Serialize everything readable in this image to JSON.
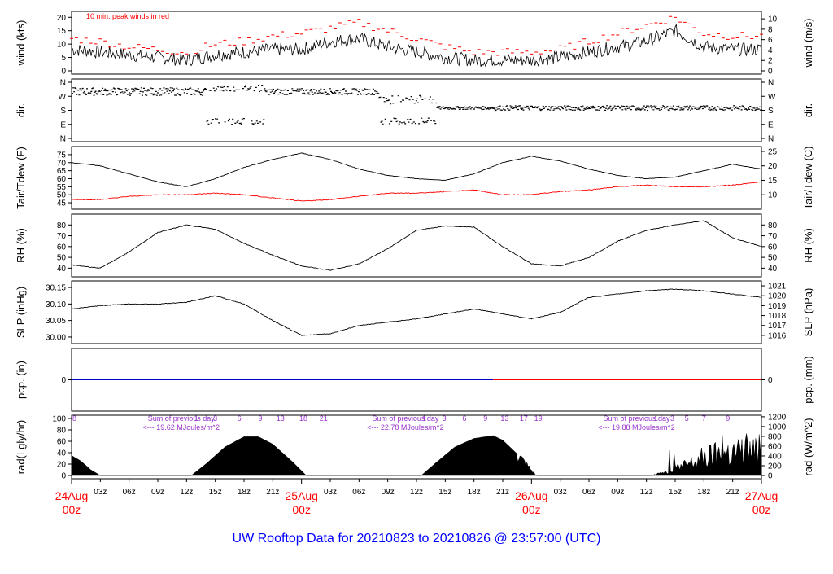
{
  "title": "UW Rooftop Data for 20210823  to  20210826 @ 23:57:00  (UTC)",
  "colors": {
    "black": "#000000",
    "red": "#ff0000",
    "blue": "#0000cc",
    "magenta": "#9933cc",
    "title": "#0000ff"
  },
  "chart_data": [
    {
      "type": "line",
      "panel": "wind",
      "ylabel_left": "wind (kts)",
      "ylabel_right": "wind (m/s)",
      "annotation": "10 min. peak winds in red",
      "ylim": [
        0,
        21
      ],
      "yticks_left": [
        "0",
        "5",
        "10",
        "15",
        "20"
      ],
      "yticks_right": [
        "0",
        "2",
        "4",
        "6",
        "8",
        "10"
      ],
      "series": [
        {
          "color": "black",
          "x": [
            0,
            3,
            6,
            9,
            12,
            15,
            18,
            21,
            24,
            27,
            30,
            33,
            36,
            39,
            42,
            45,
            48,
            51,
            54,
            57,
            60,
            63,
            66,
            69,
            72
          ],
          "values": [
            8,
            7,
            6,
            5,
            4,
            6,
            7,
            8,
            8,
            11,
            12,
            9,
            7,
            5,
            4,
            4,
            4,
            5,
            7,
            9,
            11,
            15,
            9,
            8,
            8
          ]
        },
        {
          "color": "red",
          "x": [
            0,
            3,
            6,
            9,
            12,
            15,
            18,
            21,
            24,
            27,
            30,
            33,
            36,
            39,
            42,
            45,
            48,
            51,
            54,
            57,
            60,
            63,
            66,
            69,
            72
          ],
          "values": [
            12,
            11,
            9,
            8,
            7,
            10,
            11,
            13,
            14,
            16,
            18,
            15,
            12,
            9,
            7,
            7,
            7,
            8,
            11,
            14,
            17,
            20,
            14,
            13,
            13
          ]
        }
      ]
    },
    {
      "type": "scatter",
      "panel": "dir",
      "ylabel_left": "dir.",
      "ylabel_right": "dir.",
      "yticks_left": [
        "N",
        "W",
        "S",
        "E",
        "N"
      ],
      "yticks_right": [
        "N",
        "W",
        "S",
        "E",
        "N"
      ]
    },
    {
      "type": "line",
      "panel": "temperature",
      "ylabel_left": "Tair/Tdew (F)",
      "ylabel_right": "Tair/Tdew (C)",
      "ylim": [
        43,
        78
      ],
      "yticks_left": [
        "45",
        "50",
        "55",
        "60",
        "65",
        "70",
        "75"
      ],
      "yticks_right": [
        "10",
        "15",
        "20",
        "25"
      ],
      "series": [
        {
          "color": "black",
          "x": [
            0,
            3,
            6,
            9,
            12,
            15,
            18,
            21,
            24,
            27,
            30,
            33,
            36,
            39,
            42,
            45,
            48,
            51,
            54,
            57,
            60,
            63,
            66,
            69,
            72
          ],
          "values": [
            70,
            68,
            63,
            58,
            55,
            60,
            67,
            72,
            76,
            72,
            66,
            62,
            60,
            59,
            63,
            70,
            74,
            71,
            66,
            62,
            60,
            61,
            65,
            69,
            66
          ]
        },
        {
          "color": "red",
          "x": [
            0,
            3,
            6,
            9,
            12,
            15,
            18,
            21,
            24,
            27,
            30,
            33,
            36,
            39,
            42,
            45,
            48,
            51,
            54,
            57,
            60,
            63,
            66,
            69,
            72
          ],
          "values": [
            47,
            47,
            49,
            50,
            50,
            51,
            50,
            48,
            46,
            47,
            49,
            51,
            51,
            52,
            53,
            50,
            50,
            52,
            53,
            55,
            56,
            55,
            55,
            56,
            58
          ]
        }
      ]
    },
    {
      "type": "line",
      "panel": "rh",
      "ylabel_left": "RH (%)",
      "ylabel_right": "RH (%)",
      "ylim": [
        35,
        87
      ],
      "yticks_left": [
        "40",
        "50",
        "60",
        "70",
        "80"
      ],
      "yticks_right": [
        "40",
        "50",
        "60",
        "70",
        "80"
      ],
      "series": [
        {
          "color": "black",
          "x": [
            0,
            3,
            6,
            9,
            12,
            15,
            18,
            21,
            24,
            27,
            30,
            33,
            36,
            39,
            42,
            45,
            48,
            51,
            54,
            57,
            60,
            63,
            66,
            69,
            72
          ],
          "values": [
            43,
            40,
            55,
            73,
            80,
            76,
            63,
            52,
            42,
            38,
            44,
            58,
            75,
            79,
            78,
            60,
            44,
            42,
            50,
            65,
            75,
            80,
            84,
            68,
            60
          ]
        }
      ]
    },
    {
      "type": "line",
      "panel": "slp",
      "ylabel_left": "SLP (inHg)",
      "ylabel_right": "SLP (hPa)",
      "ylim": [
        29.99,
        30.16
      ],
      "yticks_left": [
        "30.00",
        "30.05",
        "30.10",
        "30.15"
      ],
      "yticks_right": [
        "1016",
        "1017",
        "1018",
        "1019",
        "1020",
        "1021"
      ],
      "series": [
        {
          "color": "black",
          "x": [
            0,
            3,
            6,
            9,
            12,
            15,
            18,
            21,
            24,
            27,
            30,
            33,
            36,
            39,
            42,
            45,
            48,
            51,
            54,
            57,
            60,
            63,
            66,
            69,
            72
          ],
          "values": [
            30.085,
            30.095,
            30.1,
            30.1,
            30.105,
            30.125,
            30.1,
            30.05,
            30.005,
            30.01,
            30.035,
            30.045,
            30.055,
            30.07,
            30.085,
            30.07,
            30.055,
            30.075,
            30.12,
            30.13,
            30.14,
            30.145,
            30.14,
            30.13,
            30.12
          ]
        }
      ]
    },
    {
      "type": "line",
      "panel": "pcp",
      "ylabel_left": "pcp. (in)",
      "ylabel_right": "pcp. (mm)",
      "yticks_left": [
        "0"
      ],
      "yticks_right": [
        "0"
      ],
      "series": [
        {
          "color": "blue",
          "x": [
            0,
            44
          ],
          "values": [
            0,
            0
          ]
        },
        {
          "color": "red",
          "x": [
            44,
            72
          ],
          "values": [
            0,
            0
          ]
        }
      ]
    },
    {
      "type": "area",
      "panel": "radiation",
      "ylabel_left": "rad(Lgly/hr)",
      "ylabel_right": "rad (W/m^2)",
      "ylim": [
        0,
        100
      ],
      "yticks_left": [
        "0",
        "20",
        "40",
        "60",
        "80",
        "100"
      ],
      "yticks_right": [
        "0",
        "200",
        "400",
        "600",
        "800",
        "1000",
        "1200"
      ],
      "daily_sums": [
        {
          "label": "Sum of previous day",
          "value": "<--- 19.62 MJoules/m^2"
        },
        {
          "label": "Sum of previous day",
          "value": "<--- 22.78 MJoules/m^2"
        },
        {
          "label": "Sum of previous day",
          "value": "<--- 19.88 MJoules/m^2"
        }
      ],
      "hour_marks": [
        "8",
        "1",
        "3",
        "6",
        "9",
        "13",
        "18",
        "21",
        "1",
        "3",
        "6",
        "9",
        "13",
        "17",
        "19",
        "1",
        "3",
        "5",
        "7",
        "9"
      ],
      "series": [
        {
          "color": "black",
          "x": [
            0,
            1,
            2,
            3,
            12.5,
            14,
            16,
            18,
            19.5,
            21,
            23,
            24.5,
            36.5,
            38,
            40,
            42,
            44,
            45,
            47,
            48.5,
            60.5,
            62,
            64,
            66,
            68,
            70,
            72
          ],
          "values": [
            35,
            25,
            10,
            0,
            0,
            20,
            50,
            68,
            68,
            55,
            25,
            0,
            0,
            22,
            50,
            65,
            70,
            62,
            30,
            0,
            0,
            8,
            25,
            45,
            55,
            60,
            55
          ]
        }
      ]
    }
  ],
  "x_axis": {
    "ticks": [
      "03z",
      "06z",
      "09z",
      "12z",
      "15z",
      "18z",
      "21z",
      "03z",
      "06z",
      "09z",
      "12z",
      "15z",
      "18z",
      "21z",
      "03z",
      "06z",
      "09z",
      "12z",
      "15z",
      "18z",
      "21z"
    ],
    "day_labels": [
      {
        "date": "24Aug",
        "time": "00z"
      },
      {
        "date": "25Aug",
        "time": "00z"
      },
      {
        "date": "26Aug",
        "time": "00z"
      },
      {
        "date": "27Aug",
        "time": "00z"
      }
    ]
  }
}
